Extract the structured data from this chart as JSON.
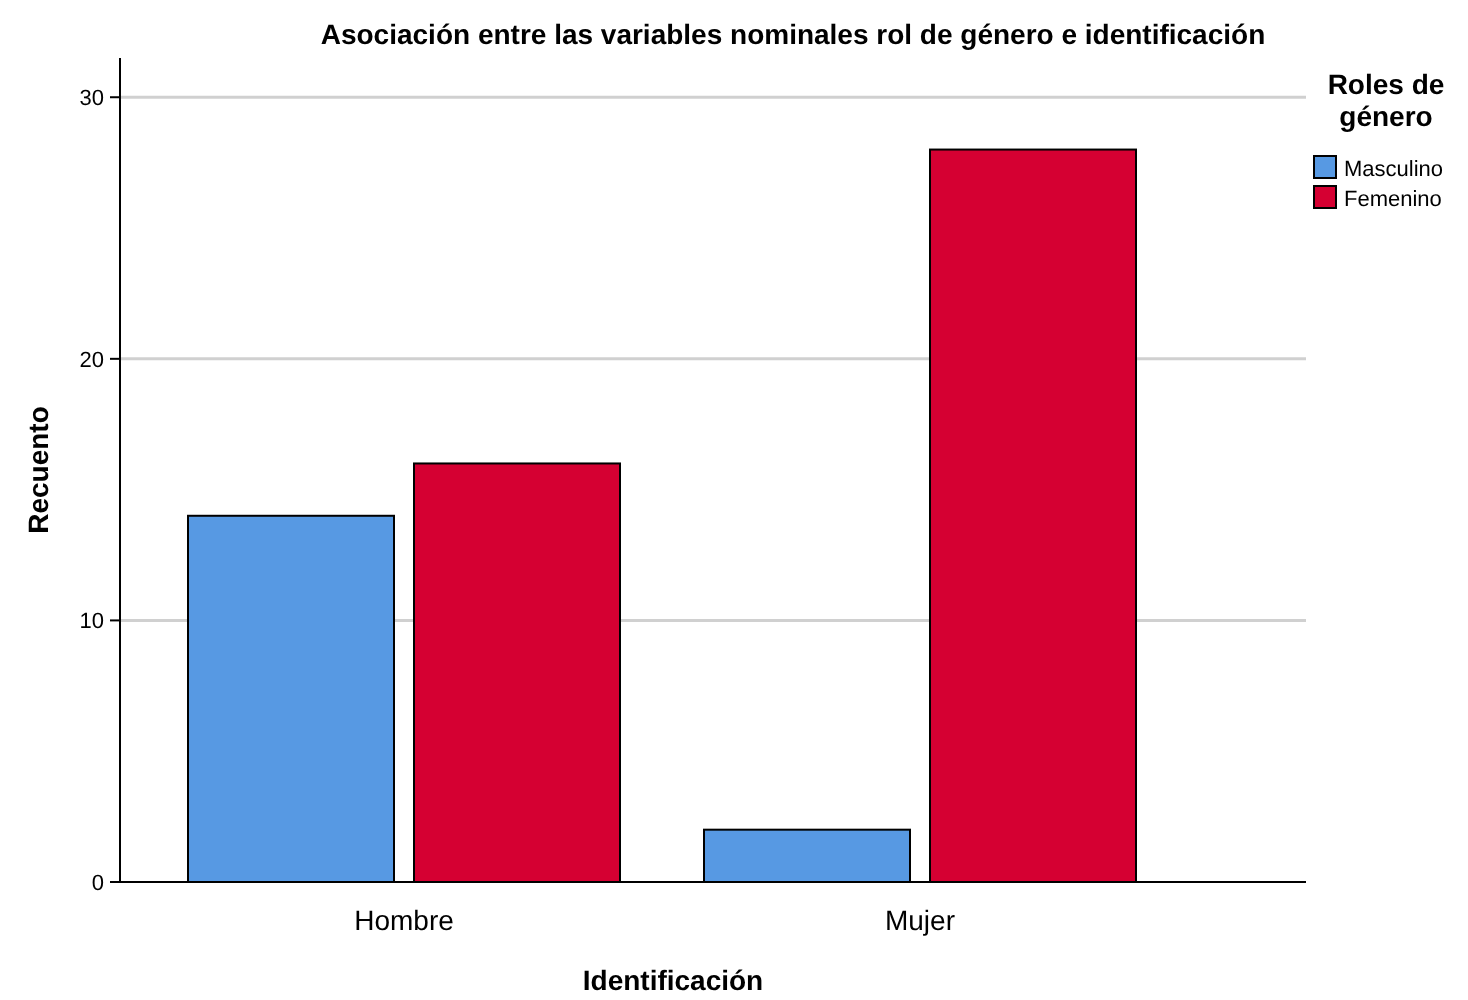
{
  "chart_data": {
    "type": "bar",
    "title": "Asociación entre las variables nominales rol de género e identificación",
    "xlabel": "Identificación",
    "ylabel": "Recuento",
    "legend_title": "Roles de género",
    "categories": [
      "Hombre",
      "Mujer"
    ],
    "series": [
      {
        "name": "Masculino",
        "color": "#5799e3",
        "values": [
          14,
          2
        ]
      },
      {
        "name": "Femenino",
        "color": "#d50032",
        "values": [
          16,
          28
        ]
      }
    ],
    "ylim": [
      0,
      31.5
    ],
    "yticks": [
      0,
      10,
      20,
      30
    ],
    "grid": "y",
    "legend": "top right"
  }
}
